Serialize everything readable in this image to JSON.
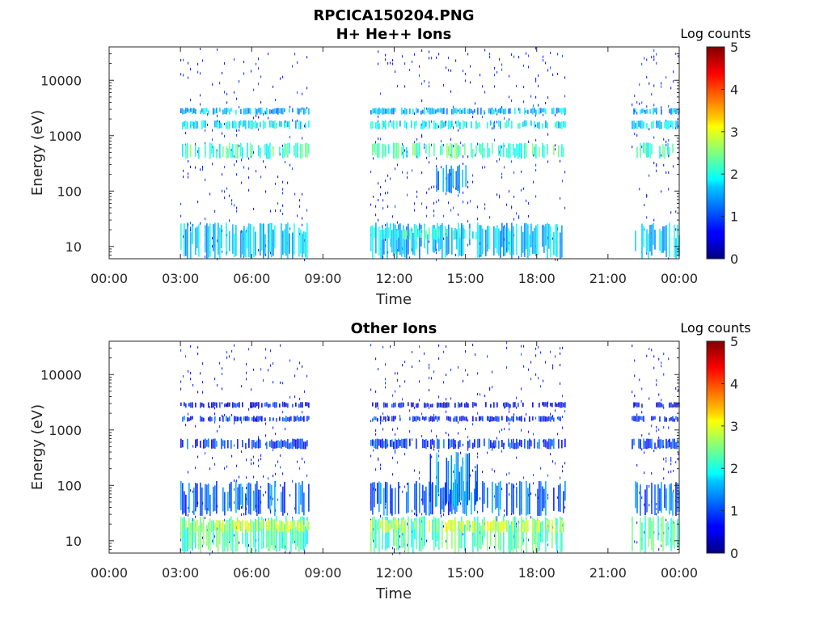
{
  "figure": {
    "title": "RPCICA150204.PNG"
  },
  "chart_data": [
    {
      "type": "heatmap",
      "title": "H+ He++ Ions",
      "xlabel": "Time",
      "ylabel": "Energy (eV)",
      "x_ticks": [
        "00:00",
        "03:00",
        "06:00",
        "09:00",
        "12:00",
        "15:00",
        "18:00",
        "21:00",
        "00:00"
      ],
      "xlim_hours": [
        0,
        24
      ],
      "y_scale": "log",
      "ylim_eV": [
        6,
        40000
      ],
      "y_ticks": [
        "10",
        "100",
        "1000",
        "10000"
      ],
      "y_tick_values": [
        10,
        100,
        1000,
        10000
      ],
      "colorbar": {
        "label": "Log counts",
        "ticks": [
          "0",
          "1",
          "2",
          "3",
          "4",
          "5"
        ],
        "range": [
          0,
          5
        ],
        "colormap": "jet"
      },
      "data_intervals_hours": [
        [
          3.0,
          8.4
        ],
        [
          11.0,
          19.2
        ],
        [
          22.0,
          24.0
        ]
      ],
      "bands": [
        {
          "e_min": 6,
          "e_max": 27,
          "intervals": [
            [
              3.0,
              8.4
            ],
            [
              11.0,
              19.2
            ],
            [
              22.0,
              24.0
            ]
          ],
          "value": 1.6
        },
        {
          "e_min": 13,
          "e_max": 22,
          "intervals": [
            [
              11.0,
              15.5
            ]
          ],
          "value": 2.0
        },
        {
          "e_min": 380,
          "e_max": 750,
          "intervals": [
            [
              3.0,
              8.4
            ],
            [
              11.0,
              19.2
            ],
            [
              22.0,
              24.0
            ]
          ],
          "value": 2.2
        },
        {
          "e_min": 1300,
          "e_max": 1900,
          "intervals": [
            [
              3.0,
              8.4
            ],
            [
              11.0,
              19.2
            ],
            [
              22.0,
              24.0
            ]
          ],
          "value": 1.8
        },
        {
          "e_min": 2400,
          "e_max": 3200,
          "intervals": [
            [
              3.0,
              8.4
            ],
            [
              11.0,
              19.2
            ],
            [
              22.0,
              24.0
            ]
          ],
          "value": 1.5
        },
        {
          "e_min": 90,
          "e_max": 300,
          "intervals": [
            [
              13.7,
              15.0
            ]
          ],
          "value": 1.2
        }
      ]
    },
    {
      "type": "heatmap",
      "title": "Other Ions",
      "xlabel": "Time",
      "ylabel": "Energy (eV)",
      "x_ticks": [
        "00:00",
        "03:00",
        "06:00",
        "09:00",
        "12:00",
        "15:00",
        "18:00",
        "21:00",
        "00:00"
      ],
      "xlim_hours": [
        0,
        24
      ],
      "y_scale": "log",
      "ylim_eV": [
        6,
        40000
      ],
      "y_ticks": [
        "10",
        "100",
        "1000",
        "10000"
      ],
      "y_tick_values": [
        10,
        100,
        1000,
        10000
      ],
      "colorbar": {
        "label": "Log counts",
        "ticks": [
          "0",
          "1",
          "2",
          "3",
          "4",
          "5"
        ],
        "range": [
          0,
          5
        ],
        "colormap": "jet"
      },
      "data_intervals_hours": [
        [
          3.0,
          8.4
        ],
        [
          11.0,
          19.2
        ],
        [
          22.0,
          24.0
        ]
      ],
      "bands": [
        {
          "e_min": 6,
          "e_max": 28,
          "intervals": [
            [
              3.0,
              8.4
            ],
            [
              11.0,
              19.2
            ],
            [
              22.0,
              24.0
            ]
          ],
          "value": 2.2
        },
        {
          "e_min": 14,
          "e_max": 24,
          "intervals": [
            [
              3.0,
              8.4
            ],
            [
              11.0,
              19.2
            ]
          ],
          "value": 2.8
        },
        {
          "e_min": 28,
          "e_max": 120,
          "intervals": [
            [
              3.0,
              8.4
            ],
            [
              11.0,
              19.2
            ],
            [
              22.0,
              24.0
            ]
          ],
          "value": 1.1
        },
        {
          "e_min": 40,
          "e_max": 400,
          "intervals": [
            [
              13.5,
              15.5
            ]
          ],
          "value": 1.3
        },
        {
          "e_min": 450,
          "e_max": 700,
          "intervals": [
            [
              3.0,
              8.4
            ],
            [
              11.0,
              19.2
            ],
            [
              22.0,
              24.0
            ]
          ],
          "value": 0.9
        },
        {
          "e_min": 1400,
          "e_max": 1800,
          "intervals": [
            [
              3.0,
              8.4
            ],
            [
              11.0,
              19.2
            ],
            [
              22.0,
              24.0
            ]
          ],
          "value": 0.8
        },
        {
          "e_min": 2500,
          "e_max": 3200,
          "intervals": [
            [
              3.0,
              8.4
            ],
            [
              11.0,
              19.2
            ],
            [
              22.0,
              24.0
            ]
          ],
          "value": 0.6
        }
      ]
    }
  ]
}
